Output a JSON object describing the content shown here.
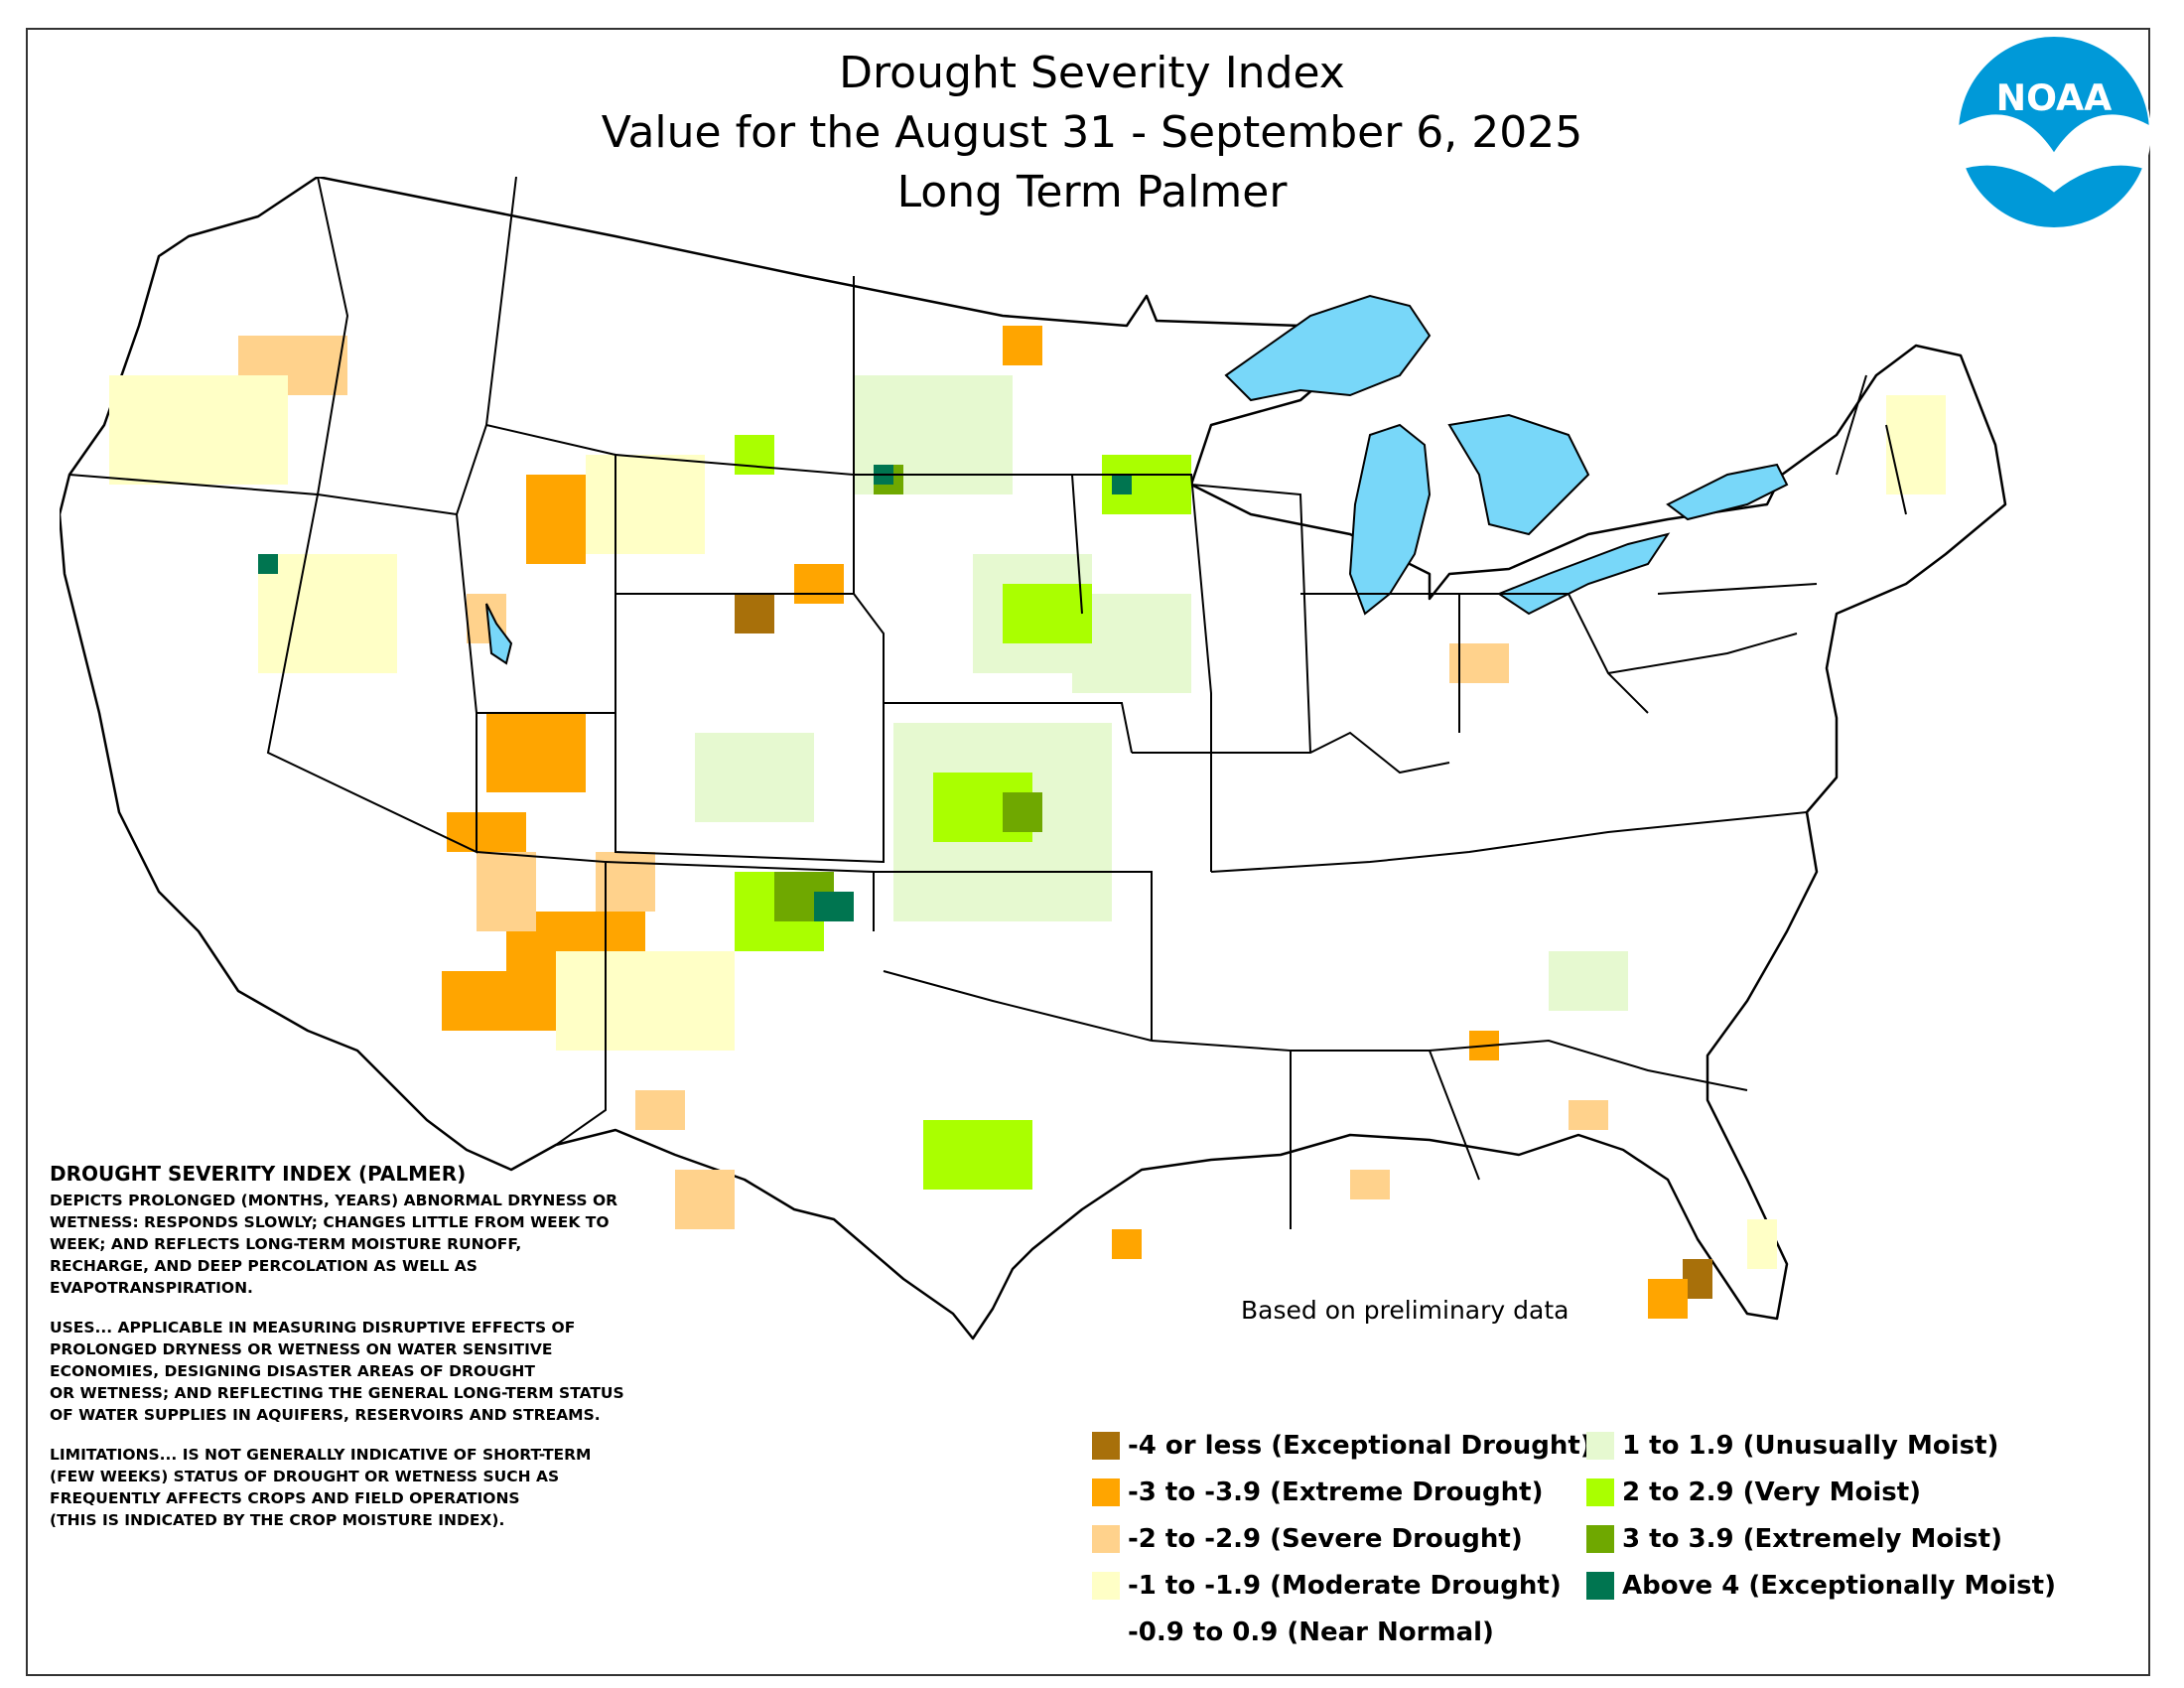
{
  "title": {
    "line1": "Drought Severity Index",
    "line2": "Value for the August 31 - September 6, 2025",
    "line3": "Long Term Palmer"
  },
  "logo": {
    "text": "NOAA",
    "colors": {
      "sky": "#0099d8",
      "sea": "#1f3f94",
      "gull": "#ffffff"
    }
  },
  "description": {
    "heading": "DROUGHT SEVERITY INDEX (PALMER)",
    "paragraphs": [
      "DEPICTS PROLONGED (MONTHS, YEARS) ABNORMAL DRYNESS OR\nWETNESS: RESPONDS SLOWLY; CHANGES LITTLE FROM WEEK TO\nWEEK; AND REFLECTS LONG-TERM MOISTURE RUNOFF,\nRECHARGE, AND DEEP PERCOLATION AS WELL AS\nEVAPOTRANSPIRATION.",
      "USES... APPLICABLE IN MEASURING DISRUPTIVE EFFECTS OF\nPROLONGED DRYNESS OR WETNESS ON WATER SENSITIVE\nECONOMIES, DESIGNING DISASTER AREAS OF DROUGHT\nOR WETNESS; AND REFLECTING THE GENERAL LONG-TERM STATUS\nOF WATER SUPPLIES IN AQUIFERS, RESERVOIRS AND STREAMS.",
      "LIMITATIONS... IS NOT GENERALLY INDICATIVE OF SHORT-TERM\n(FEW WEEKS) STATUS OF DROUGHT OR WETNESS SUCH AS\nFREQUENTLY AFFECTS CROPS AND FIELD OPERATIONS\n(THIS IS INDICATED BY THE CROP MOISTURE INDEX)."
    ]
  },
  "note": "Based on preliminary data",
  "legend": [
    {
      "label": "-4 or less (Exceptional Drought)",
      "color": "#a8700a"
    },
    {
      "label": "-3 to -3.9 (Extreme Drought)",
      "color": "#ffa500"
    },
    {
      "label": "-2 to -2.9 (Severe Drought)",
      "color": "#ffd28c"
    },
    {
      "label": "-1 to -1.9 (Moderate Drought)",
      "color": "#ffffc6"
    },
    {
      "label": "-0.9 to 0.9 (Near Normal)",
      "color": "#ffffff"
    },
    {
      "label": "1 to 1.9 (Unusually Moist)",
      "color": "#e6f9d0"
    },
    {
      "label": "2 to 2.9 (Very Moist)",
      "color": "#aaff00"
    },
    {
      "label": "3 to 3.9 (Extremely Moist)",
      "color": "#6fa800"
    },
    {
      "label": "Above 4 (Exceptionally Moist)",
      "color": "#007550"
    }
  ],
  "map": {
    "water_color": "#78d7f9",
    "border_color": "#000000"
  }
}
